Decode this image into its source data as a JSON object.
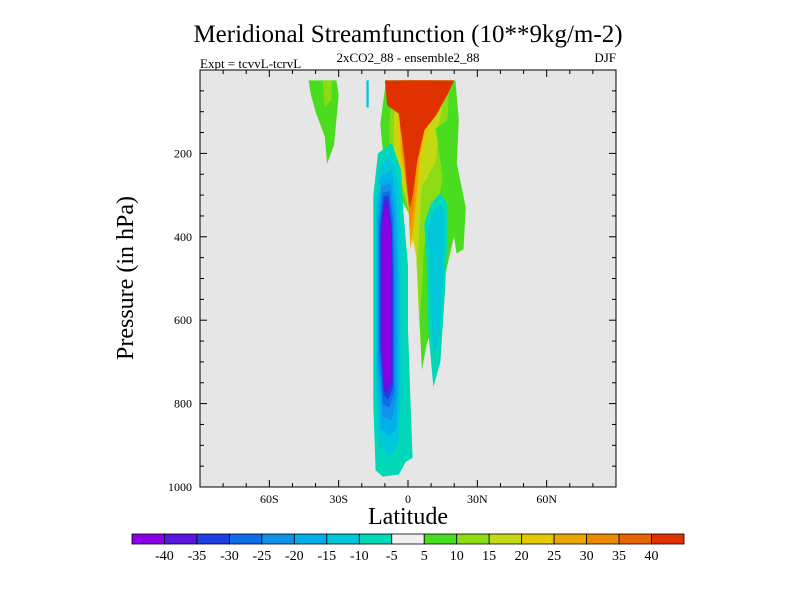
{
  "chart_data": {
    "type": "heatmap",
    "title": "Meridional Streamfunction (10**9kg/m-2)",
    "subtitle": "2xCO2_88 - ensemble2_88",
    "left_label": "Expt = tcvvL-tcrvL",
    "right_label": "DJF",
    "xlabel": "Latitude",
    "ylabel": "Pressure (in hPa)",
    "xlim": [
      -90,
      90
    ],
    "ylim": [
      1000,
      0
    ],
    "x_ticks": [
      {
        "value": -60,
        "label": "60S"
      },
      {
        "value": -30,
        "label": "30S"
      },
      {
        "value": 0,
        "label": "0"
      },
      {
        "value": 30,
        "label": "30N"
      },
      {
        "value": 60,
        "label": "60N"
      }
    ],
    "y_ticks": [
      {
        "value": 200,
        "label": "200"
      },
      {
        "value": 400,
        "label": "400"
      },
      {
        "value": 600,
        "label": "600"
      },
      {
        "value": 800,
        "label": "800"
      },
      {
        "value": 1000,
        "label": "1000"
      }
    ],
    "background_color": "#e6e6e6",
    "colorbar": {
      "labels": [
        "-40",
        "-35",
        "-30",
        "-25",
        "-20",
        "-15",
        "-10",
        "-5",
        "5",
        "10",
        "15",
        "20",
        "25",
        "30",
        "35",
        "40"
      ],
      "colors": [
        "#8a00e6",
        "#5a16e0",
        "#1f3fe3",
        "#0f6de8",
        "#0f92e8",
        "#00b0e8",
        "#00c8d8",
        "#00d8b8",
        "#f0f0f0",
        "#4adc1e",
        "#8cdc14",
        "#c4d814",
        "#e4c800",
        "#e8a800",
        "#ec8a00",
        "#e86400",
        "#e03200"
      ]
    },
    "regions": [
      {
        "name": "northern-cell-outer",
        "level": 5,
        "points": [
          [
            -9.5,
            25
          ],
          [
            20.5,
            25
          ],
          [
            22,
            120
          ],
          [
            21,
            240
          ],
          [
            24,
            325
          ],
          [
            19,
            420
          ],
          [
            13,
            570
          ],
          [
            8,
            660
          ],
          [
            6,
            720
          ],
          [
            3,
            370
          ],
          [
            -3,
            310
          ],
          [
            -10,
            250
          ],
          [
            -12,
            130
          ]
        ]
      },
      {
        "name": "northern-cell-10",
        "level": 10,
        "points": [
          [
            -6.5,
            25
          ],
          [
            18,
            25
          ],
          [
            17,
            130
          ],
          [
            16,
            230
          ],
          [
            13,
            320
          ],
          [
            7,
            420
          ],
          [
            5,
            620
          ],
          [
            3,
            370
          ],
          [
            -2,
            300
          ],
          [
            -8,
            230
          ],
          [
            -8,
            120
          ]
        ]
      },
      {
        "name": "northern-cell-15",
        "level": 15,
        "points": [
          [
            -4.5,
            25
          ],
          [
            16.5,
            25
          ],
          [
            13.5,
            130
          ],
          [
            12,
            220
          ],
          [
            6,
            280
          ],
          [
            4,
            460
          ],
          [
            2,
            400
          ],
          [
            -1,
            300
          ],
          [
            -6,
            220
          ],
          [
            -6,
            110
          ]
        ]
      },
      {
        "name": "northern-cell-20",
        "level": 20,
        "points": [
          [
            -3,
            25
          ],
          [
            14.5,
            25
          ],
          [
            10,
            120
          ],
          [
            6,
            210
          ],
          [
            4,
            330
          ],
          [
            2,
            420
          ],
          [
            0,
            300
          ],
          [
            -4,
            210
          ],
          [
            -5,
            100
          ]
        ]
      },
      {
        "name": "northern-cell-25",
        "level": 25,
        "points": [
          [
            -2,
            25
          ],
          [
            12.5,
            25
          ],
          [
            8,
            120
          ],
          [
            5,
            210
          ],
          [
            3,
            350
          ],
          [
            1,
            430
          ],
          [
            0,
            300
          ],
          [
            -3,
            200
          ],
          [
            -4,
            90
          ]
        ]
      },
      {
        "name": "northern-cell-30",
        "level": 30,
        "points": [
          [
            -1,
            25
          ],
          [
            10.5,
            25
          ],
          [
            6,
            110
          ],
          [
            4,
            200
          ],
          [
            2.5,
            330
          ],
          [
            1,
            380
          ],
          [
            -0.5,
            280
          ],
          [
            -2.5,
            190
          ],
          [
            -3,
            80
          ]
        ]
      },
      {
        "name": "northern-cell-35",
        "level": 35,
        "points": [
          [
            0,
            25
          ],
          [
            9.5,
            25
          ],
          [
            4.5,
            110
          ],
          [
            3,
            200
          ],
          [
            1.5,
            300
          ],
          [
            0.5,
            330
          ],
          [
            -1,
            260
          ],
          [
            -2,
            180
          ],
          [
            -2,
            80
          ]
        ]
      },
      {
        "name": "northern-cell-40",
        "level": 40,
        "points": [
          [
            -10,
            25
          ],
          [
            20,
            25
          ],
          [
            17,
            60
          ],
          [
            12,
            110
          ],
          [
            7,
            145
          ],
          [
            4,
            220
          ],
          [
            2,
            300
          ],
          [
            1,
            330
          ],
          [
            0,
            300
          ],
          [
            -1,
            230
          ],
          [
            -3,
            150
          ],
          [
            -4,
            105
          ],
          [
            -9,
            85
          ]
        ]
      },
      {
        "name": "northern-upper-tongue",
        "level": 5,
        "points": [
          [
            12,
            140
          ],
          [
            17,
            120
          ],
          [
            21,
            220
          ],
          [
            25,
            330
          ],
          [
            24,
            430
          ],
          [
            21,
            440
          ],
          [
            19,
            360
          ],
          [
            15,
            260
          ]
        ]
      },
      {
        "name": "southern-cell-5",
        "level": -5,
        "points": [
          [
            -13,
            200
          ],
          [
            -7,
            175
          ],
          [
            -3,
            240
          ],
          [
            -2,
            340
          ],
          [
            0,
            470
          ],
          [
            0,
            620
          ],
          [
            1,
            780
          ],
          [
            2,
            930
          ],
          [
            -1,
            940
          ],
          [
            -4,
            970
          ],
          [
            -11,
            975
          ],
          [
            -14,
            960
          ],
          [
            -15,
            800
          ],
          [
            -15,
            480
          ],
          [
            -15,
            300
          ]
        ]
      },
      {
        "name": "southern-cell-10",
        "level": -10,
        "points": [
          [
            -12.5,
            230
          ],
          [
            -7,
            200
          ],
          [
            -4,
            280
          ],
          [
            -3,
            400
          ],
          [
            -3,
            600
          ],
          [
            -3,
            760
          ],
          [
            -4,
            890
          ],
          [
            -8,
            930
          ],
          [
            -12.5,
            900
          ],
          [
            -14,
            750
          ],
          [
            -14,
            320
          ]
        ]
      },
      {
        "name": "southern-cell-15",
        "level": -15,
        "points": [
          [
            -12,
            260
          ],
          [
            -7,
            240
          ],
          [
            -5,
            320
          ],
          [
            -4,
            500
          ],
          [
            -4,
            760
          ],
          [
            -5,
            860
          ],
          [
            -8,
            880
          ],
          [
            -12,
            860
          ],
          [
            -13.5,
            720
          ],
          [
            -13.5,
            340
          ]
        ]
      },
      {
        "name": "southern-cell-20",
        "level": -20,
        "points": [
          [
            -11.5,
            280
          ],
          [
            -7.5,
            270
          ],
          [
            -6,
            340
          ],
          [
            -5,
            500
          ],
          [
            -5,
            780
          ],
          [
            -7,
            840
          ],
          [
            -11,
            830
          ],
          [
            -13,
            700
          ],
          [
            -13,
            360
          ]
        ]
      },
      {
        "name": "southern-cell-25",
        "level": -25,
        "points": [
          [
            -11,
            295
          ],
          [
            -8,
            290
          ],
          [
            -6.5,
            360
          ],
          [
            -6,
            500
          ],
          [
            -6,
            770
          ],
          [
            -8,
            810
          ],
          [
            -11,
            800
          ],
          [
            -12.5,
            680
          ],
          [
            -12.5,
            370
          ]
        ]
      },
      {
        "name": "southern-cell-30",
        "level": -30,
        "points": [
          [
            -10.5,
            305
          ],
          [
            -8.5,
            300
          ],
          [
            -7,
            370
          ],
          [
            -6.5,
            500
          ],
          [
            -6.5,
            760
          ],
          [
            -8.5,
            790
          ],
          [
            -10.5,
            780
          ],
          [
            -12,
            660
          ],
          [
            -12,
            380
          ]
        ]
      },
      {
        "name": "southern-cell-35",
        "level": -35,
        "points": [
          [
            -10.2,
            315
          ],
          [
            -8.7,
            312
          ],
          [
            -7.3,
            380
          ],
          [
            -7,
            500
          ],
          [
            -7,
            745
          ],
          [
            -9,
            775
          ],
          [
            -10.5,
            765
          ],
          [
            -11.7,
            650
          ],
          [
            -11.7,
            390
          ]
        ]
      },
      {
        "name": "southern-cell-40",
        "level": -40,
        "points": [
          [
            -10,
            330
          ],
          [
            -9,
            330
          ],
          [
            -7.5,
            390
          ],
          [
            -7.5,
            500
          ],
          [
            -7.5,
            740
          ],
          [
            -9,
            765
          ],
          [
            -10,
            760
          ],
          [
            -11.5,
            640
          ],
          [
            -11.5,
            400
          ]
        ]
      },
      {
        "name": "southern-tiny-upper",
        "level": -10,
        "points": [
          [
            -18,
            25
          ],
          [
            -17,
            25
          ],
          [
            -17,
            90
          ],
          [
            -18,
            90
          ]
        ]
      },
      {
        "name": "northern-lower-cell-5",
        "level": -5,
        "points": [
          [
            7,
            370
          ],
          [
            10,
            320
          ],
          [
            14,
            295
          ],
          [
            17,
            320
          ],
          [
            17,
            400
          ],
          [
            16,
            530
          ],
          [
            14,
            700
          ],
          [
            11,
            760
          ],
          [
            9,
            640
          ],
          [
            8,
            450
          ]
        ]
      },
      {
        "name": "northern-lower-cell-10",
        "level": -10,
        "points": [
          [
            8.5,
            380
          ],
          [
            11,
            340
          ],
          [
            14,
            320
          ],
          [
            16,
            350
          ],
          [
            15.5,
            450
          ],
          [
            14.5,
            580
          ],
          [
            13,
            660
          ],
          [
            11,
            680
          ],
          [
            10,
            560
          ],
          [
            9,
            450
          ]
        ]
      },
      {
        "name": "southern-upper-tongue-outer",
        "level": 5,
        "points": [
          [
            -43,
            25
          ],
          [
            -31,
            25
          ],
          [
            -30,
            60
          ],
          [
            -32,
            180
          ],
          [
            -35,
            225
          ],
          [
            -36,
            160
          ],
          [
            -40,
            100
          ],
          [
            -42,
            60
          ]
        ]
      },
      {
        "name": "southern-upper-tongue-10",
        "level": 10,
        "points": [
          [
            -37,
            25
          ],
          [
            -33,
            25
          ],
          [
            -33,
            70
          ],
          [
            -36,
            90
          ]
        ]
      }
    ]
  }
}
